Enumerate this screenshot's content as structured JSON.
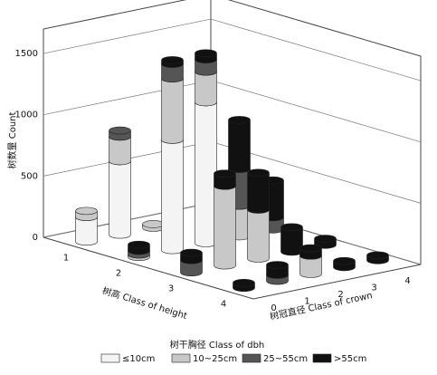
{
  "chart_data": {
    "type": "bar3d",
    "title": "树干胸径 Class of dbh",
    "x_label": "树高 Class of height",
    "z_label": "树冠直径 Class of crown",
    "y_label": "树数量 Count",
    "x_categories": [
      "1",
      "2",
      "3",
      "4"
    ],
    "z_categories": [
      "0",
      "1",
      "2",
      "3",
      "4"
    ],
    "ylim": [
      0,
      1700
    ],
    "yticks": [
      0,
      500,
      1000,
      1500
    ],
    "grid": true,
    "series": [
      {
        "name": "≤10cm",
        "color": "#f4f4f4",
        "values": [
          [
            200,
            600,
            0,
            0,
            0
          ],
          [
            0,
            900,
            1150,
            0,
            0
          ],
          [
            0,
            0,
            0,
            0,
            0
          ],
          [
            0,
            0,
            0,
            0,
            0
          ]
        ]
      },
      {
        "name": "10~25cm",
        "color": "#c8c8c8",
        "values": [
          [
            50,
            200,
            30,
            0,
            0
          ],
          [
            20,
            500,
            250,
            250,
            0
          ],
          [
            0,
            650,
            400,
            0,
            0
          ],
          [
            0,
            0,
            150,
            0,
            0
          ]
        ]
      },
      {
        "name": "25~55cm",
        "color": "#555555",
        "values": [
          [
            0,
            50,
            0,
            0,
            0
          ],
          [
            30,
            120,
            100,
            300,
            100
          ],
          [
            100,
            0,
            0,
            0,
            0
          ],
          [
            0,
            50,
            0,
            0,
            0
          ]
        ]
      },
      {
        "name": ">55cm",
        "color": "#111111",
        "values": [
          [
            0,
            0,
            0,
            0,
            0
          ],
          [
            50,
            30,
            50,
            400,
            300
          ],
          [
            60,
            100,
            300,
            200,
            50
          ],
          [
            40,
            80,
            60,
            50,
            40
          ]
        ]
      }
    ]
  }
}
